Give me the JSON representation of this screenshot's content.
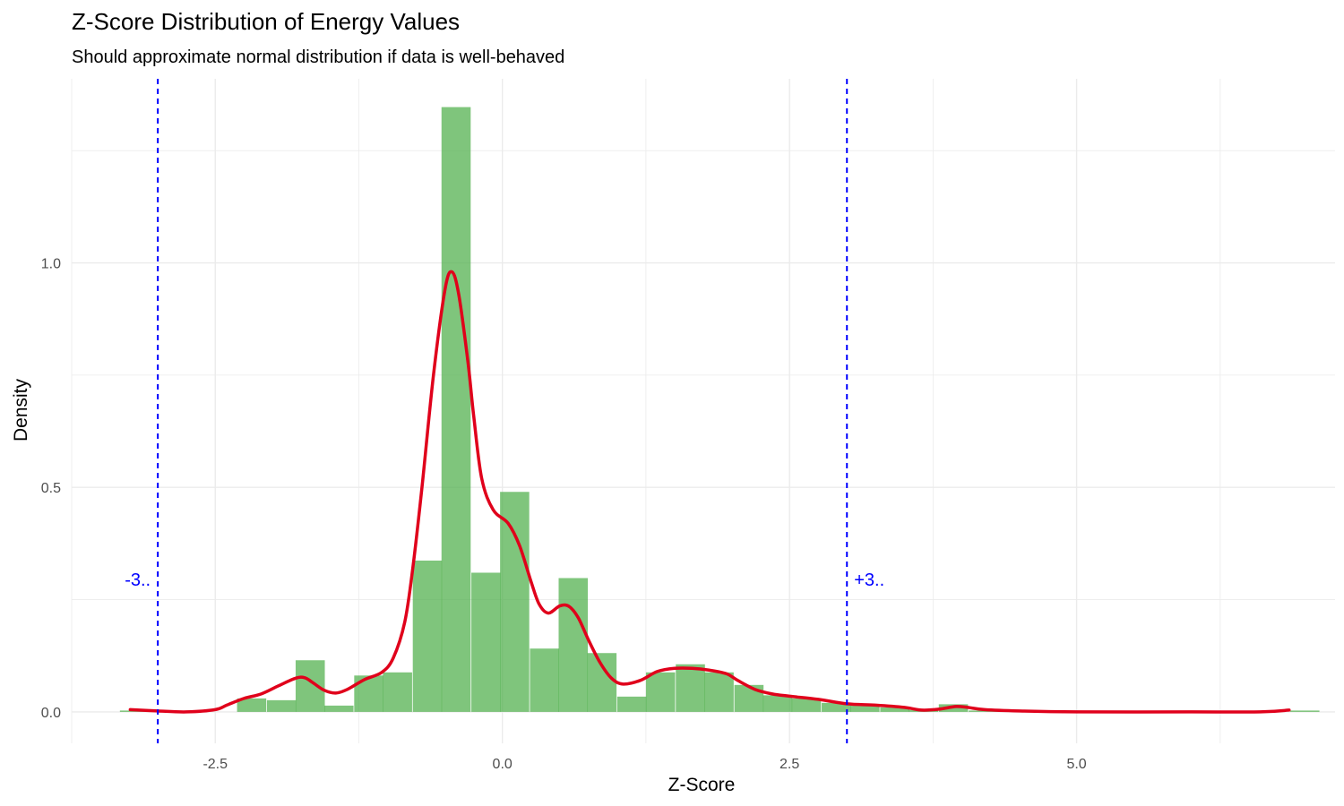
{
  "chart_data": {
    "type": "histogram",
    "title": "Z-Score Distribution of Energy Values",
    "subtitle": "Should approximate normal distribution if data is well-behaved",
    "xlabel": "Z-Score",
    "ylabel": "Density",
    "xlim": [
      -3.75,
      7.25
    ],
    "ylim": [
      -0.07,
      1.41
    ],
    "x_ticks": [
      -2.5,
      0.0,
      2.5,
      5.0
    ],
    "x_tick_labels": [
      "-2.5",
      "0.0",
      "2.5",
      "5.0"
    ],
    "y_ticks": [
      0.0,
      0.5,
      1.0
    ],
    "y_tick_labels": [
      "0.0",
      "0.5",
      "1.0"
    ],
    "grid": true,
    "histogram": {
      "color": "#4daf4a",
      "opacity": 0.72,
      "bin_width": 0.254,
      "bins": [
        {
          "x0": -3.33,
          "density": 0.003
        },
        {
          "x0": -2.31,
          "density": 0.03
        },
        {
          "x0": -2.05,
          "density": 0.026
        },
        {
          "x0": -1.8,
          "density": 0.115
        },
        {
          "x0": -1.55,
          "density": 0.014
        },
        {
          "x0": -1.29,
          "density": 0.081
        },
        {
          "x0": -1.04,
          "density": 0.088
        },
        {
          "x0": -0.78,
          "density": 0.337
        },
        {
          "x0": -0.53,
          "density": 1.347
        },
        {
          "x0": -0.27,
          "density": 0.31
        },
        {
          "x0": -0.02,
          "density": 0.49
        },
        {
          "x0": 0.24,
          "density": 0.141
        },
        {
          "x0": 0.49,
          "density": 0.298
        },
        {
          "x0": 0.74,
          "density": 0.131
        },
        {
          "x0": 1.0,
          "density": 0.034
        },
        {
          "x0": 1.25,
          "density": 0.088
        },
        {
          "x0": 1.51,
          "density": 0.106
        },
        {
          "x0": 1.76,
          "density": 0.088
        },
        {
          "x0": 2.02,
          "density": 0.06
        },
        {
          "x0": 2.27,
          "density": 0.037
        },
        {
          "x0": 2.52,
          "density": 0.03
        },
        {
          "x0": 2.78,
          "density": 0.02
        },
        {
          "x0": 3.03,
          "density": 0.014
        },
        {
          "x0": 3.29,
          "density": 0.01
        },
        {
          "x0": 3.54,
          "density": 0.004
        },
        {
          "x0": 3.8,
          "density": 0.017
        },
        {
          "x0": 4.06,
          "density": 0.003
        },
        {
          "x0": 6.86,
          "density": 0.003
        }
      ]
    },
    "density_curve": {
      "color": "#e0001b",
      "points": [
        [
          -3.24,
          0.005
        ],
        [
          -3.0,
          0.002
        ],
        [
          -2.75,
          0.0
        ],
        [
          -2.5,
          0.005
        ],
        [
          -2.4,
          0.015
        ],
        [
          -2.25,
          0.03
        ],
        [
          -2.1,
          0.04
        ],
        [
          -1.95,
          0.058
        ],
        [
          -1.8,
          0.075
        ],
        [
          -1.72,
          0.076
        ],
        [
          -1.65,
          0.065
        ],
        [
          -1.55,
          0.048
        ],
        [
          -1.45,
          0.042
        ],
        [
          -1.35,
          0.05
        ],
        [
          -1.2,
          0.072
        ],
        [
          -1.05,
          0.088
        ],
        [
          -0.95,
          0.12
        ],
        [
          -0.85,
          0.2
        ],
        [
          -0.78,
          0.32
        ],
        [
          -0.7,
          0.5
        ],
        [
          -0.6,
          0.75
        ],
        [
          -0.5,
          0.94
        ],
        [
          -0.44,
          0.98
        ],
        [
          -0.38,
          0.93
        ],
        [
          -0.3,
          0.78
        ],
        [
          -0.25,
          0.66
        ],
        [
          -0.18,
          0.52
        ],
        [
          -0.08,
          0.45
        ],
        [
          0.05,
          0.42
        ],
        [
          0.15,
          0.37
        ],
        [
          0.25,
          0.29
        ],
        [
          0.32,
          0.24
        ],
        [
          0.4,
          0.22
        ],
        [
          0.5,
          0.236
        ],
        [
          0.58,
          0.235
        ],
        [
          0.66,
          0.21
        ],
        [
          0.75,
          0.16
        ],
        [
          0.85,
          0.11
        ],
        [
          0.95,
          0.075
        ],
        [
          1.05,
          0.062
        ],
        [
          1.2,
          0.07
        ],
        [
          1.35,
          0.09
        ],
        [
          1.5,
          0.097
        ],
        [
          1.65,
          0.097
        ],
        [
          1.8,
          0.093
        ],
        [
          1.95,
          0.085
        ],
        [
          2.05,
          0.07
        ],
        [
          2.2,
          0.05
        ],
        [
          2.35,
          0.04
        ],
        [
          2.5,
          0.035
        ],
        [
          2.75,
          0.028
        ],
        [
          3.0,
          0.018
        ],
        [
          3.25,
          0.015
        ],
        [
          3.5,
          0.01
        ],
        [
          3.65,
          0.004
        ],
        [
          3.8,
          0.006
        ],
        [
          3.95,
          0.012
        ],
        [
          4.05,
          0.01
        ],
        [
          4.2,
          0.005
        ],
        [
          4.5,
          0.002
        ],
        [
          5.0,
          0.0
        ],
        [
          6.0,
          0.0
        ],
        [
          6.6,
          0.0
        ],
        [
          6.85,
          0.004
        ]
      ]
    },
    "reference_lines": [
      {
        "x": -3,
        "label": "-3..",
        "color": "#0000ff",
        "label_y": 0.295
      },
      {
        "x": 3,
        "label": "+3..",
        "color": "#0000ff",
        "label_y": 0.295
      }
    ]
  }
}
